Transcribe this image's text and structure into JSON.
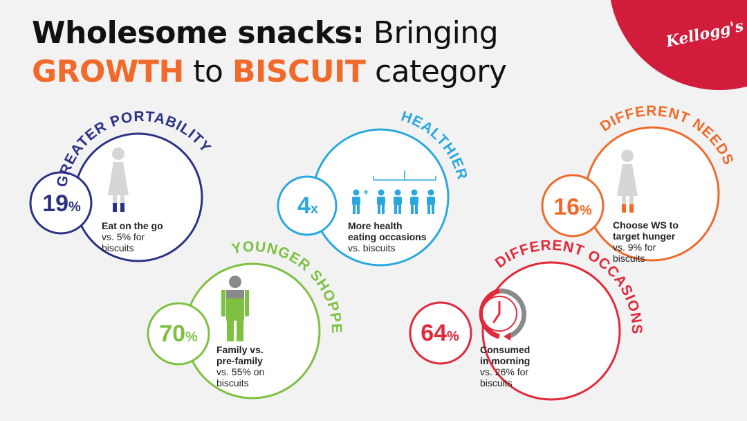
{
  "title": {
    "line1_bold": "Wholesome snacks:",
    "line1_rest": " Bringing",
    "line2_word1": "GROWTH",
    "line2_mid": " to ",
    "line2_word2": "BISCUIT",
    "line2_end": " category"
  },
  "brand": {
    "logo_text": "Kellogg's",
    "accent_color": "#d11d3b"
  },
  "cards": [
    {
      "arc_label": "GREATER PORTABILITY",
      "value": "19",
      "unit": "%",
      "caption_bold": "Eat on the go",
      "caption_lines": [
        "vs. 5% for",
        "biscuits"
      ],
      "color": "#2a3284",
      "icon": "woman-icon"
    },
    {
      "arc_label": "HEALTHIER",
      "value": "4",
      "unit": "x",
      "caption_bold_lines": [
        "More health",
        "eating occasions"
      ],
      "caption_lines": [
        "vs. biscuits"
      ],
      "color": "#2aa8dd",
      "icon": "people-group-icon"
    },
    {
      "arc_label": "DIFFERENT NEEDS",
      "value": "16",
      "unit": "%",
      "caption_bold_lines": [
        "Choose WS to",
        "target hunger"
      ],
      "caption_lines": [
        "vs. 9% for",
        "biscuits"
      ],
      "color": "#ef6a2a",
      "icon": "woman-icon"
    },
    {
      "arc_label": "YOUNGER SHOPPERS",
      "value": "70",
      "unit": "%",
      "caption_bold_lines": [
        "Family vs.",
        "pre-family"
      ],
      "caption_lines": [
        "vs. 55% on",
        "biscuits"
      ],
      "color": "#7dc142",
      "icon": "man-icon"
    },
    {
      "arc_label": "DIFFERENT OCCASIONS",
      "value": "64",
      "unit": "%",
      "caption_bold_lines": [
        "Consumed",
        "in morning"
      ],
      "caption_lines": [
        "vs. 26% for",
        "biscuits"
      ],
      "color": "#e02a3a",
      "icon": "clock-icon"
    }
  ]
}
